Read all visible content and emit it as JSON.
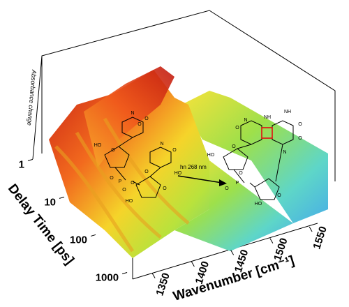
{
  "chart_data": {
    "type": "surface3d",
    "xlabel": "Wavenumber [cm⁻¹]",
    "ylabel": "Delay Time [ps]",
    "zlabel": "Absorbance change",
    "xlim": [
      1325,
      1565
    ],
    "xticks": [
      1350,
      1400,
      1450,
      1500,
      1550
    ],
    "ylim": [
      0.7,
      1500
    ],
    "yticks": [
      1,
      10,
      100,
      1000
    ],
    "ylog": true,
    "annotation": "hn 268 nm",
    "atoms_left": [
      "HO",
      "O",
      "O",
      "N",
      "O",
      "N",
      "O",
      "O",
      "HO",
      "O",
      "P",
      "O",
      "O",
      "HO",
      "O"
    ],
    "atoms_right": [
      "HO",
      "O",
      "N",
      "NH",
      "O",
      "O",
      "N",
      "NH",
      "O",
      "O",
      "P",
      "O",
      "HO",
      "O"
    ]
  }
}
